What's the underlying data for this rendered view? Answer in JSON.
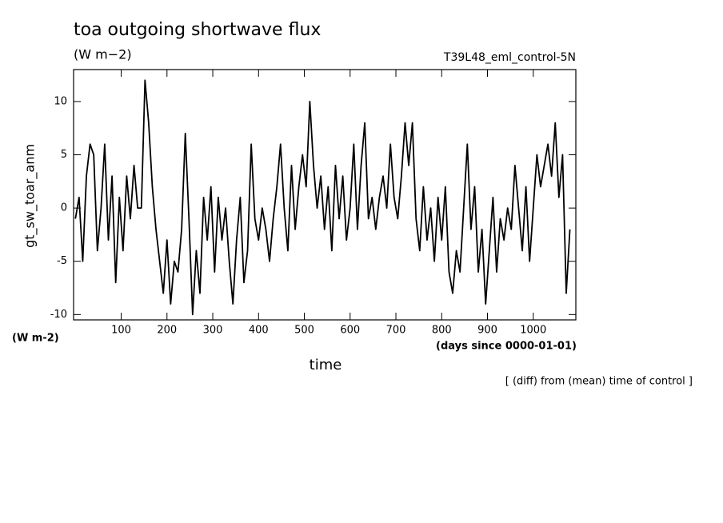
{
  "chart_data": {
    "type": "line",
    "title": "toa outgoing shortwave flux",
    "units": "(W m−2)",
    "run_label": "T39L48_eml_control-5N",
    "y_label": "gt_sw_toar_anm",
    "y_units": "(W m-2)",
    "x_label": "time",
    "x_units": "(days since 0000-01-01)",
    "note": "[ (diff) from (mean) time of control ]",
    "xlim": [
      -4,
      1093
    ],
    "ylim": [
      -10.5,
      13
    ],
    "xticks": [
      100,
      200,
      300,
      400,
      500,
      600,
      700,
      800,
      900,
      1000
    ],
    "yticks": [
      -10,
      -5,
      0,
      5,
      10
    ],
    "x": [
      0,
      8,
      16,
      24,
      32,
      40,
      48,
      56,
      64,
      72,
      80,
      88,
      96,
      104,
      112,
      120,
      128,
      136,
      144,
      152,
      160,
      168,
      176,
      184,
      192,
      200,
      208,
      216,
      224,
      232,
      240,
      248,
      256,
      264,
      272,
      280,
      288,
      296,
      304,
      312,
      320,
      328,
      336,
      344,
      352,
      360,
      368,
      376,
      384,
      392,
      400,
      408,
      416,
      424,
      432,
      440,
      448,
      456,
      464,
      472,
      480,
      488,
      496,
      504,
      512,
      520,
      528,
      536,
      544,
      552,
      560,
      568,
      576,
      584,
      592,
      600,
      608,
      616,
      624,
      632,
      640,
      648,
      656,
      664,
      672,
      680,
      688,
      696,
      704,
      712,
      720,
      728,
      736,
      744,
      752,
      760,
      768,
      776,
      784,
      792,
      800,
      808,
      816,
      824,
      832,
      840,
      848,
      856,
      864,
      872,
      880,
      888,
      896,
      904,
      912,
      920,
      928,
      936,
      944,
      952,
      960,
      968,
      976,
      984,
      992,
      1000,
      1008,
      1016,
      1024,
      1032,
      1040,
      1048,
      1056,
      1064,
      1072,
      1080
    ],
    "series": [
      {
        "name": "gt_sw_toar_anm",
        "color": "#000000",
        "values": [
          -1,
          1,
          -5,
          3,
          6,
          5,
          -4,
          0,
          6,
          -3,
          3,
          -7,
          1,
          -4,
          3,
          -1,
          4,
          0,
          0,
          12,
          8,
          2,
          -2,
          -5,
          -8,
          -3,
          -9,
          -5,
          -6,
          -2,
          7,
          -1,
          -10,
          -4,
          -8,
          1,
          -3,
          2,
          -6,
          1,
          -3,
          0,
          -5,
          -9,
          -3,
          1,
          -7,
          -4,
          6,
          -1,
          -3,
          0,
          -2,
          -5,
          -1,
          2,
          6,
          0,
          -4,
          4,
          -2,
          2,
          5,
          2,
          10,
          4,
          0,
          3,
          -2,
          2,
          -4,
          4,
          -1,
          3,
          -3,
          0,
          6,
          -2,
          4,
          8,
          -1,
          1,
          -2,
          1,
          3,
          0,
          6,
          1,
          -1,
          3,
          8,
          4,
          8,
          -1,
          -4,
          2,
          -3,
          0,
          -5,
          1,
          -3,
          2,
          -6,
          -8,
          -4,
          -6,
          0,
          6,
          -2,
          2,
          -6,
          -2,
          -9,
          -4,
          1,
          -6,
          -1,
          -3,
          0,
          -2,
          4,
          0,
          -4,
          2,
          -5,
          0,
          5,
          2,
          4,
          6,
          3,
          8,
          1,
          5,
          -8,
          -2
        ]
      }
    ]
  }
}
